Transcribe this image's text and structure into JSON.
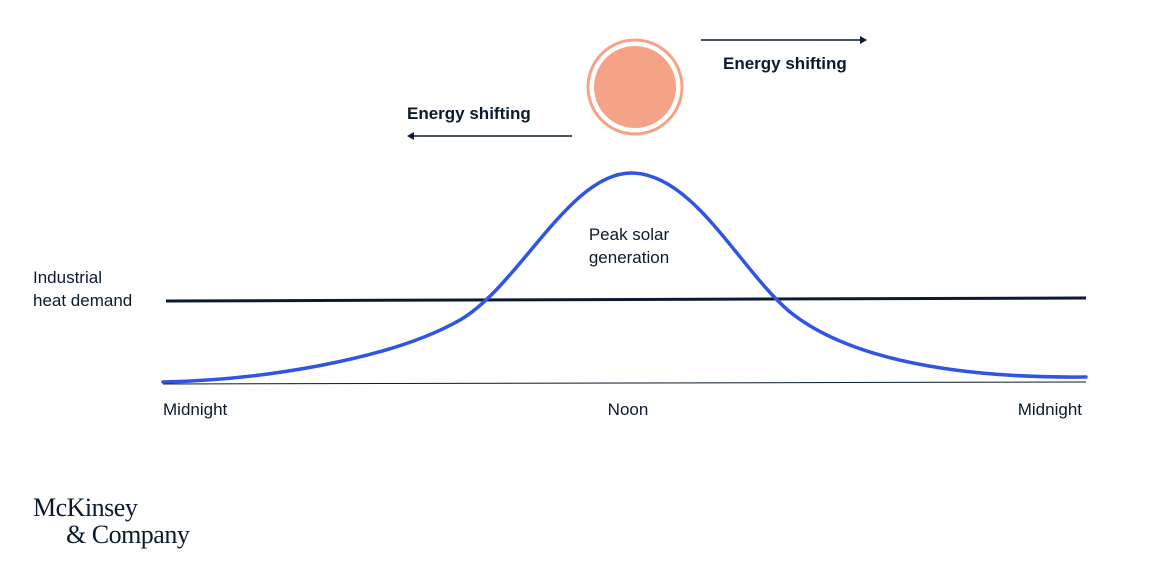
{
  "labels": {
    "energy_shifting_right": "Energy shifting",
    "energy_shifting_left": "Energy shifting",
    "peak_line1": "Peak solar",
    "peak_line2": "generation",
    "demand_line1": "Industrial",
    "demand_line2": "heat demand",
    "x_start": "Midnight",
    "x_mid": "Noon",
    "x_end": "Midnight"
  },
  "logo": {
    "line1": "McKinsey",
    "line2": "& Company"
  },
  "colors": {
    "solar_curve": "#2f55e4",
    "demand_line": "#0b1a2e",
    "baseline": "#0b1a2e",
    "sun_fill": "#f5a386",
    "sun_ring": "#f5a386",
    "text": "#0b1a2e"
  },
  "icons": {
    "sun": "sun-icon",
    "arrow_right": "arrow-right-icon",
    "arrow_left": "arrow-left-icon"
  }
}
